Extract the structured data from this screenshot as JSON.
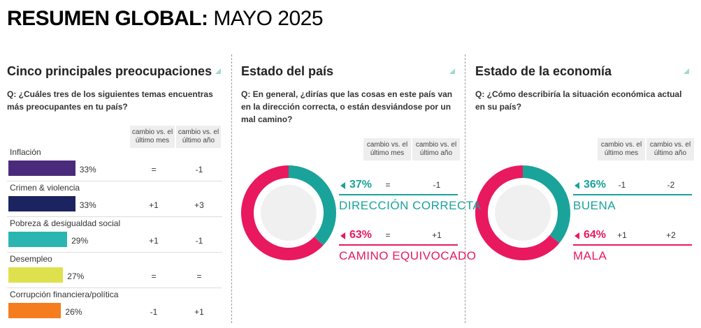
{
  "header": {
    "title": "RESUMEN GLOBAL:",
    "subtitle": "MAYO 2025"
  },
  "panels": [
    {
      "title": "Cinco principales preocupaciones",
      "question": "Q: ¿Cuáles tres de los siguientes temas encuentras más preocupantes en tu país?",
      "col_headers": [
        "cambio vs. el último mes",
        "cambio vs. el último año"
      ],
      "rows": [
        {
          "label": "Inflación",
          "value": 33,
          "value_label": "33%",
          "color": "#4a2a7a",
          "month": "=",
          "year": "-1"
        },
        {
          "label": "Crimen & violencia",
          "value": 33,
          "value_label": "33%",
          "color": "#1b2460",
          "month": "+1",
          "year": "+3"
        },
        {
          "label": "Pobreza & desigualdad social",
          "value": 29,
          "value_label": "29%",
          "color": "#2bb5b0",
          "month": "+1",
          "year": "-1"
        },
        {
          "label": "Desempleo",
          "value": 27,
          "value_label": "27%",
          "color": "#dfe04e",
          "month": "=",
          "year": "="
        },
        {
          "label": "Corrupción financiera/política",
          "value": 26,
          "value_label": "26%",
          "color": "#f57c1f",
          "month": "-1",
          "year": "+1"
        }
      ]
    },
    {
      "title": "Estado del país",
      "question": "Q: En general, ¿dirías que las cosas en este país van en la dirección correcta, o están desviándose por un mal camino?",
      "col_headers": [
        "cambio vs. el último mes",
        "cambio vs. el último año"
      ],
      "rows": [
        {
          "label": "DIRECCIÓN CORRECTA",
          "value": 37,
          "value_label": "37%",
          "color": "#1aa39a",
          "month": "=",
          "year": "-1"
        },
        {
          "label": "CAMINO EQUIVOCADO",
          "value": 63,
          "value_label": "63%",
          "color": "#e8195e",
          "month": "=",
          "year": "+1"
        }
      ]
    },
    {
      "title": "Estado de la economía",
      "question": "Q: ¿Cómo describiría la situación económica actual en su país?",
      "col_headers": [
        "cambio vs. el último mes",
        "cambio vs. el último año"
      ],
      "rows": [
        {
          "label": "BUENA",
          "value": 36,
          "value_label": "36%",
          "color": "#1aa39a",
          "month": "-1",
          "year": "-2"
        },
        {
          "label": "MALA",
          "value": 64,
          "value_label": "64%",
          "color": "#e8195e",
          "month": "+1",
          "year": "+2"
        }
      ]
    }
  ]
}
